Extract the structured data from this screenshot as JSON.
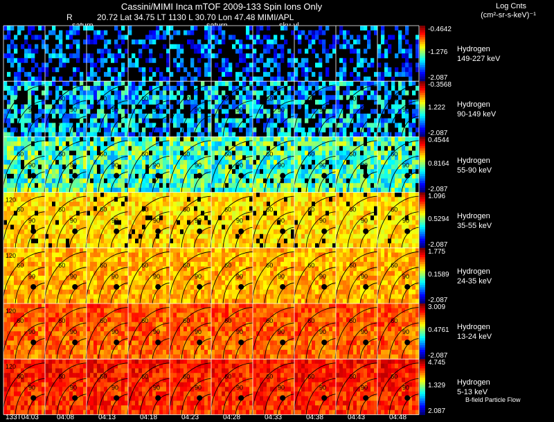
{
  "header": {
    "title": "Cassini/MIMI Inca mTOF   2009-133   Spin   Ions Only",
    "r_label": "R",
    "orbit_line": "20.72 Lat 34.75 LT 1130 L         30.70 Lon          47.48   MIMI/APL",
    "colorbar_title": "Log Cnts",
    "colorbar_units": "(cm²-sr-s-keV)⁻¹",
    "labels_top": [
      "saturn",
      "saturn",
      "sku-vl"
    ]
  },
  "chart_data": {
    "type": "heatmap",
    "title": "Cassini/MIMI Inca mTOF   2009-133   Spin   Ions Only",
    "colorbar_title": "Log Cnts",
    "colorbar_units": "(cm²-sr-s-keV)⁻¹",
    "x": [
      "133T04:03",
      "04:08",
      "04:13",
      "04:18",
      "04:23",
      "04:28",
      "04:33",
      "04:38",
      "04:43",
      "04:48"
    ],
    "rows": [
      {
        "species": "Hydrogen",
        "energy": "149-227 keV",
        "cbar": [
          "-0.4642",
          "-1.276",
          "-2.087"
        ],
        "mean_level": 0.22
      },
      {
        "species": "Hydrogen",
        "energy": "90-149 keV",
        "cbar": [
          "-0.3568",
          "1.222",
          "-2.087"
        ],
        "mean_level": 0.32
      },
      {
        "species": "Hydrogen",
        "energy": "55-90 keV",
        "cbar": [
          "0.4544",
          "0.8164",
          "-2.087"
        ],
        "mean_level": 0.45
      },
      {
        "species": "Hydrogen",
        "energy": "35-55 keV",
        "cbar": [
          "1.096",
          "0.5294",
          "-2.087"
        ],
        "mean_level": 0.66
      },
      {
        "species": "Hydrogen",
        "energy": "24-35 keV",
        "cbar": [
          "1.775",
          "0.1589",
          "-2.087"
        ],
        "mean_level": 0.7
      },
      {
        "species": "Hydrogen",
        "energy": "13-24 keV",
        "cbar": [
          "3.009",
          "0.4761",
          "-2.087"
        ],
        "mean_level": 0.76
      },
      {
        "species": "Hydrogen",
        "energy": "5-13 keV",
        "cbar": [
          "4.745",
          "1.329",
          "2.087"
        ],
        "mean_level": 0.82
      }
    ],
    "contour_labels": [
      "120",
      "90",
      "60",
      "30"
    ],
    "footer_note": "B-field Particle Flow"
  }
}
